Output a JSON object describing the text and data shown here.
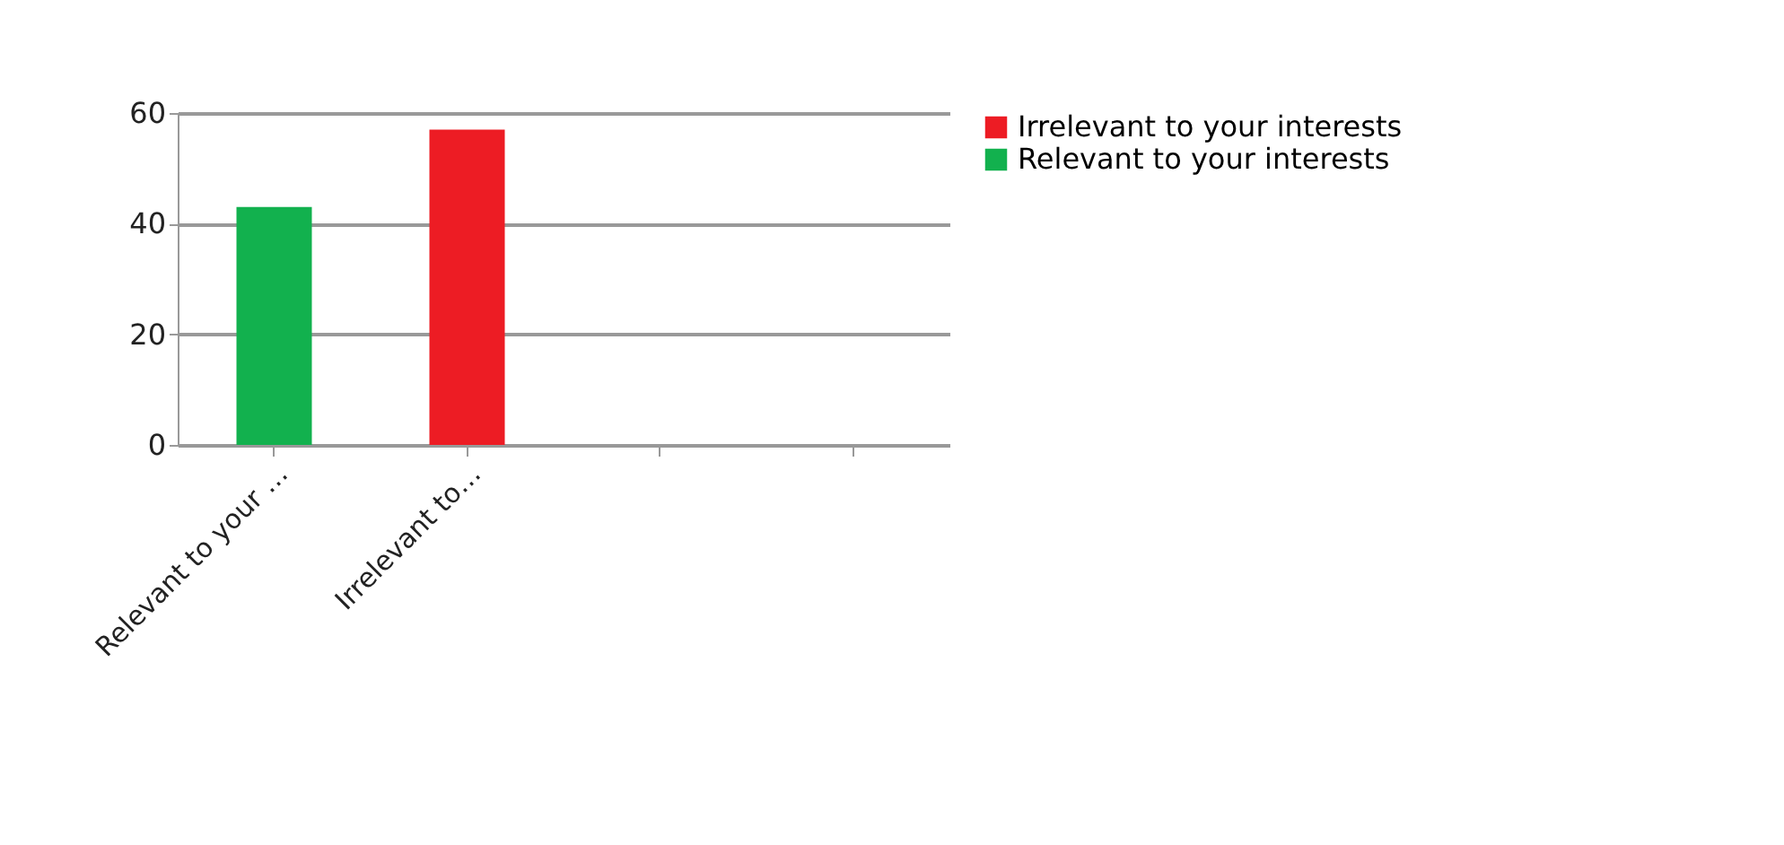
{
  "chart_data": {
    "type": "bar",
    "categories": [
      "Relevant to your …",
      "Irrelevant to…",
      null,
      null
    ],
    "series": [
      {
        "name": "Irrelevant to your interests",
        "color": "#ed1c24",
        "values": [
          null,
          57,
          null,
          null
        ]
      },
      {
        "name": "Relevant to your interests",
        "color": "#12b14e",
        "values": [
          43,
          null,
          null,
          null
        ]
      }
    ],
    "ylim": [
      0,
      60
    ],
    "yticks": [
      0,
      20,
      40,
      60
    ],
    "grid": "y",
    "legend": "right"
  }
}
